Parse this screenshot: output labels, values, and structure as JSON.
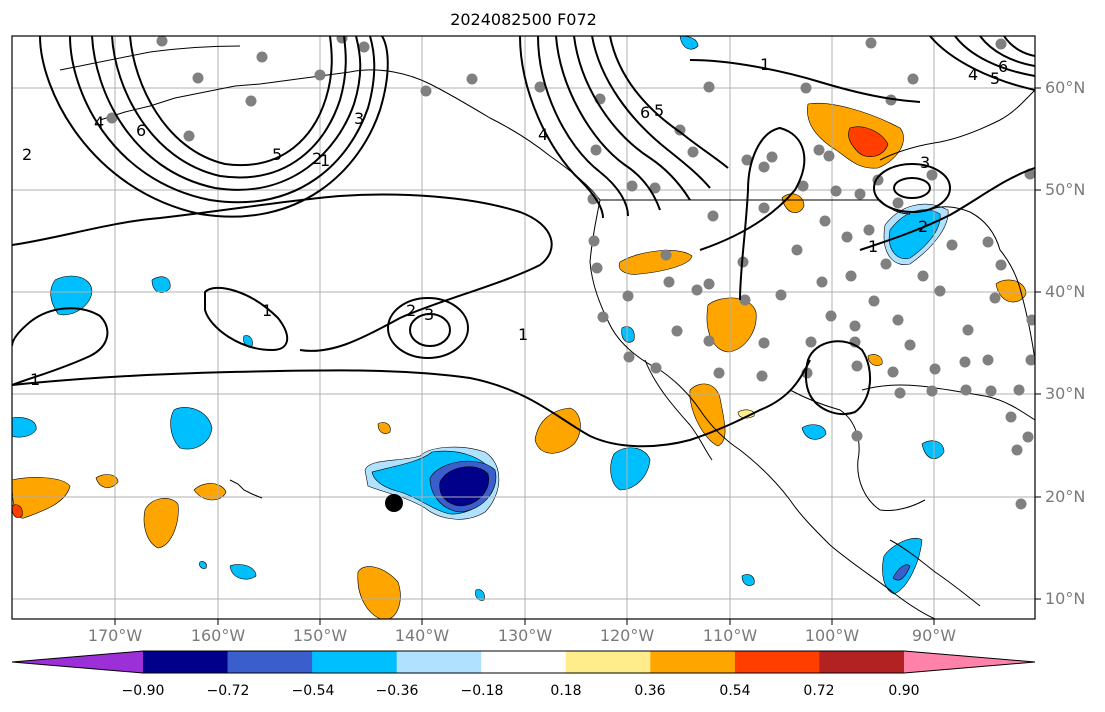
{
  "title": "2024082500 F072",
  "map": {
    "lon_labels": [
      "170°W",
      "160°W",
      "150°W",
      "140°W",
      "130°W",
      "120°W",
      "110°W",
      "100°W",
      "90°W"
    ],
    "lat_labels": [
      "60°N",
      "50°N",
      "40°N",
      "30°N",
      "20°N",
      "10°N"
    ],
    "gridlines": true,
    "contour_labels": [
      "1",
      "2",
      "3",
      "4",
      "5",
      "6"
    ]
  },
  "colorbar": {
    "ticks": [
      "−0.90",
      "−0.72",
      "−0.54",
      "−0.36",
      "−0.18",
      "0.18",
      "0.36",
      "0.54",
      "0.72",
      "0.90"
    ],
    "colors": [
      "#9b30d9",
      "#00008b",
      "#3a5fcd",
      "#00bfff",
      "#b0e2ff",
      "#ffffff",
      "#ffec8b",
      "#ffa500",
      "#ff3e00",
      "#b22222",
      "#ff82ab"
    ]
  },
  "colors": {
    "gridline": "#b0b0b0",
    "coast": "#000000",
    "station_dot": "#808080"
  }
}
